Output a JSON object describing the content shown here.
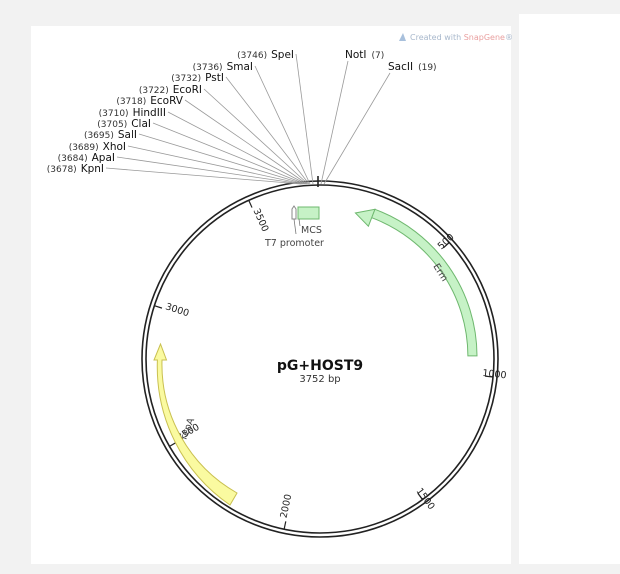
{
  "watermark": {
    "prefix": "Created with ",
    "brand": "SnapGene",
    "suffix": "®"
  },
  "plasmid": {
    "name": "pG+HOST9",
    "size_label": "3752 bp",
    "total_bp": 3752
  },
  "sites": [
    {
      "enzyme": "KpnI",
      "pos": "(3678)"
    },
    {
      "enzyme": "ApaI",
      "pos": "(3684)"
    },
    {
      "enzyme": "XhoI",
      "pos": "(3689)"
    },
    {
      "enzyme": "SalI",
      "pos": "(3695)"
    },
    {
      "enzyme": "ClaI",
      "pos": "(3705)"
    },
    {
      "enzyme": "HindIII",
      "pos": "(3710)"
    },
    {
      "enzyme": "EcoRV",
      "pos": "(3718)"
    },
    {
      "enzyme": "EcoRI",
      "pos": "(3722)"
    },
    {
      "enzyme": "PstI",
      "pos": "(3732)"
    },
    {
      "enzyme": "SmaI",
      "pos": "(3736)"
    },
    {
      "enzyme": "SpeI",
      "pos": "(3746)"
    },
    {
      "enzyme": "NotI",
      "pos": "(7)"
    },
    {
      "enzyme": "SacII",
      "pos": "(19)"
    }
  ],
  "ticks": [
    "500",
    "1000",
    "1500",
    "2000",
    "2500",
    "3000",
    "3500"
  ],
  "features": [
    {
      "name": "Erm",
      "color": "#c6f2c6",
      "stroke": "#6fb86f"
    },
    {
      "name": "repA",
      "color": "#fafaa0",
      "stroke": "#c9c050"
    },
    {
      "name": "MCS",
      "color": "#c6f2c6",
      "stroke": "#6fb86f"
    },
    {
      "name": "T7 promoter",
      "color": "#ffffff",
      "stroke": "#888888"
    }
  ]
}
